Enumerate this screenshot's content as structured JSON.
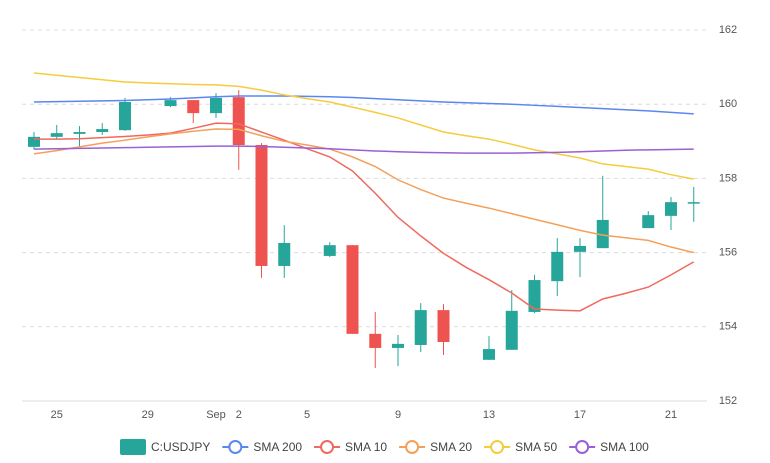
{
  "chart_data": {
    "type": "candlestick",
    "categories": [
      null,
      "25",
      null,
      null,
      null,
      "29",
      null,
      null,
      "Sep",
      "2",
      null,
      null,
      "5",
      null,
      null,
      null,
      "9",
      null,
      null,
      null,
      "13",
      null,
      null,
      null,
      "17",
      null,
      null,
      null,
      "21",
      null
    ],
    "ylim": [
      152,
      162
    ],
    "yticks": [
      152,
      154,
      156,
      158,
      160,
      162
    ],
    "grid": true,
    "series": [
      {
        "name": "C:USDJPY",
        "type": "candlestick",
        "color": "#26a69a",
        "down_color": "#ef5350",
        "open": [
          158.85,
          159.12,
          159.2,
          159.25,
          159.3,
          null,
          159.95,
          160.11,
          159.76,
          160.19,
          158.9,
          155.64,
          null,
          155.91,
          156.2,
          153.81,
          153.43,
          153.51,
          154.45,
          null,
          153.11,
          153.38,
          154.4,
          155.23,
          156.02,
          156.12,
          null,
          156.66,
          156.99,
          157.36
        ],
        "high": [
          159.25,
          159.44,
          159.41,
          159.49,
          160.17,
          null,
          160.19,
          160.11,
          160.3,
          160.38,
          158.95,
          156.74,
          null,
          156.28,
          156.2,
          154.4,
          153.78,
          154.64,
          154.61,
          null,
          153.75,
          154.99,
          155.4,
          156.39,
          156.39,
          158.07,
          null,
          157.12,
          157.5,
          157.77
        ],
        "low": [
          158.78,
          159.04,
          158.85,
          159.17,
          159.28,
          null,
          159.92,
          159.49,
          159.63,
          158.23,
          155.32,
          155.32,
          null,
          155.88,
          153.81,
          152.89,
          152.94,
          153.32,
          153.24,
          null,
          153.11,
          153.38,
          154.37,
          154.83,
          155.34,
          156.12,
          null,
          156.66,
          156.61,
          156.83
        ],
        "close": [
          159.12,
          159.22,
          159.25,
          159.33,
          160.06,
          null,
          160.11,
          159.76,
          160.17,
          158.9,
          155.64,
          156.26,
          null,
          156.2,
          153.81,
          153.43,
          153.54,
          154.45,
          153.59,
          null,
          153.4,
          154.43,
          155.26,
          156.02,
          156.18,
          156.88,
          null,
          157.01,
          157.36,
          157.36
        ]
      },
      {
        "name": "SMA 200",
        "type": "line",
        "color": "#5b87f0",
        "values": [
          160.06,
          160.07,
          160.08,
          160.09,
          160.1,
          160.12,
          160.14,
          160.17,
          160.2,
          160.22,
          160.22,
          160.22,
          160.21,
          160.2,
          160.18,
          160.15,
          160.12,
          160.09,
          160.06,
          160.04,
          160.02,
          160.0,
          159.97,
          159.94,
          159.91,
          159.88,
          159.85,
          159.82,
          159.78,
          159.74
        ]
      },
      {
        "name": "SMA 10",
        "type": "line",
        "color": "#f0695f",
        "values": [
          159.06,
          159.06,
          159.07,
          159.1,
          159.13,
          159.17,
          159.22,
          159.35,
          159.49,
          159.47,
          159.25,
          159.03,
          158.8,
          158.58,
          158.2,
          157.6,
          156.95,
          156.45,
          155.98,
          155.6,
          155.27,
          154.91,
          154.48,
          154.45,
          154.43,
          154.75,
          154.9,
          155.07,
          155.4,
          155.75
        ]
      },
      {
        "name": "SMA 20",
        "type": "line",
        "color": "#f5a05a",
        "values": [
          158.66,
          158.75,
          158.85,
          158.95,
          159.03,
          159.12,
          159.2,
          159.27,
          159.33,
          159.32,
          159.15,
          159.0,
          158.9,
          158.79,
          158.58,
          158.32,
          157.96,
          157.7,
          157.47,
          157.33,
          157.2,
          157.05,
          156.9,
          156.75,
          156.6,
          156.47,
          156.4,
          156.33,
          156.15,
          156.0
        ]
      },
      {
        "name": "SMA 50",
        "type": "line",
        "color": "#f5cc3d",
        "values": [
          160.84,
          160.78,
          160.72,
          160.66,
          160.6,
          160.57,
          160.55,
          160.53,
          160.52,
          160.48,
          160.38,
          160.25,
          160.15,
          160.06,
          159.92,
          159.78,
          159.63,
          159.44,
          159.25,
          159.15,
          159.06,
          158.92,
          158.77,
          158.66,
          158.55,
          158.39,
          158.32,
          158.25,
          158.1,
          157.98
        ]
      },
      {
        "name": "SMA 100",
        "type": "line",
        "color": "#9b5fd6",
        "values": [
          158.79,
          158.8,
          158.81,
          158.82,
          158.83,
          158.84,
          158.85,
          158.86,
          158.87,
          158.87,
          158.86,
          158.84,
          158.82,
          158.8,
          158.77,
          158.74,
          158.72,
          158.7,
          158.69,
          158.68,
          158.68,
          158.68,
          158.69,
          158.7,
          158.72,
          158.74,
          158.76,
          158.77,
          158.78,
          158.79
        ]
      }
    ]
  }
}
